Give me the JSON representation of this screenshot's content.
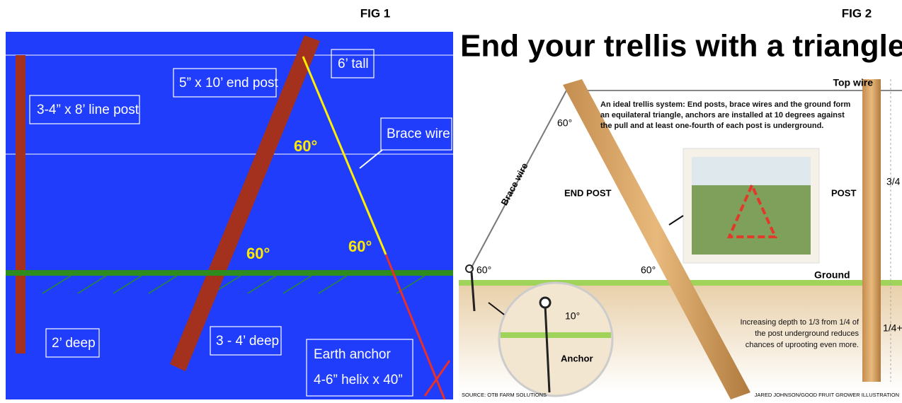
{
  "header": {
    "fig1_label": "FIG 1",
    "fig2_label": "FIG 2"
  },
  "fig1": {
    "line_post": "3-4” x 8’ line post",
    "end_post": "5” x 10’ end post",
    "tall": "6’ tall",
    "brace_wire": "Brace wire",
    "angles": [
      "60°",
      "60°",
      "60°"
    ],
    "line_depth": "2’ deep",
    "end_depth": "3 - 4’ deep",
    "anchor": [
      "Earth anchor",
      "4-6” helix x 40”"
    ]
  },
  "fig2": {
    "title": "End your trellis with a triangle",
    "top_wire": "Top wire",
    "description": [
      "An ideal trellis system: End posts, brace wires and the ground form",
      "an equilateral triangle, anchors are installed at 10 degrees against",
      "the pull and at least one-fourth of each post is underground."
    ],
    "angles": [
      "60°",
      "60°",
      "60°"
    ],
    "brace_wire": "Brace wire",
    "end_post": "END POST",
    "post": "POST",
    "upper_fraction": "3/4",
    "ground": "Ground",
    "depth_note": [
      "Increasing depth to 1/3 from 1/4 of",
      "the post underground reduces",
      "chances of uprooting even more."
    ],
    "lower_fraction": "1/4+",
    "anchor_angle": "10°",
    "anchor": "Anchor",
    "source": "SOURCE: OTB FARM SOLUTIONS",
    "credit": "JARED JOHNSON/GOOD FRUIT GROWER ILLUSTRATION"
  }
}
